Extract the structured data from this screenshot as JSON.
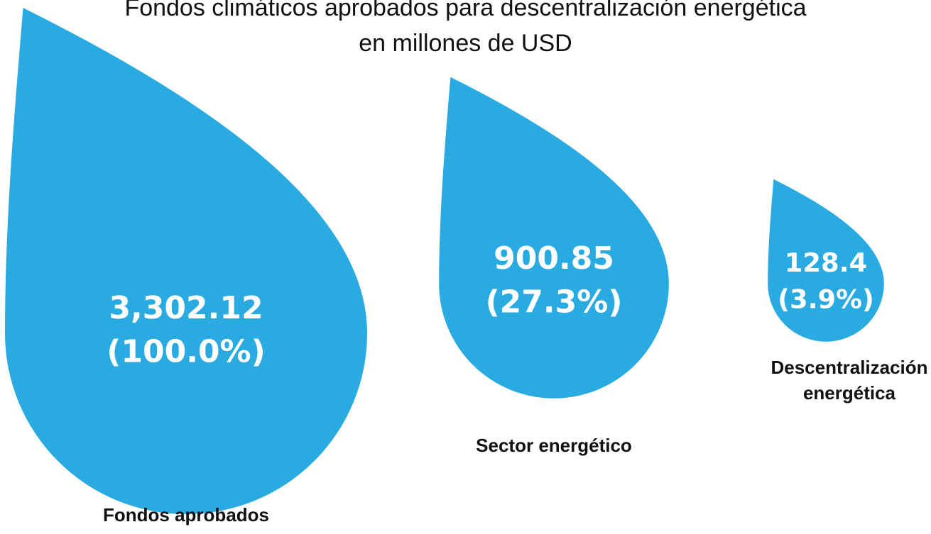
{
  "chart_data": {
    "type": "drop",
    "title": "Fondos climáticos aprobados para descentralización energética",
    "subtitle": "en millones de USD",
    "categories": [
      "Fondos aprobados",
      "Sector energético",
      "Descentralización energética"
    ],
    "values": [
      3302.12,
      900.85,
      128.4
    ],
    "value_labels": [
      "3,302.12",
      "900.85",
      "128.4"
    ],
    "shares": [
      100.0,
      27.3,
      3.9
    ],
    "share_labels": [
      "(100.0%)",
      "(27.3%)",
      "(3.9%)"
    ],
    "color": "#29abe2"
  }
}
